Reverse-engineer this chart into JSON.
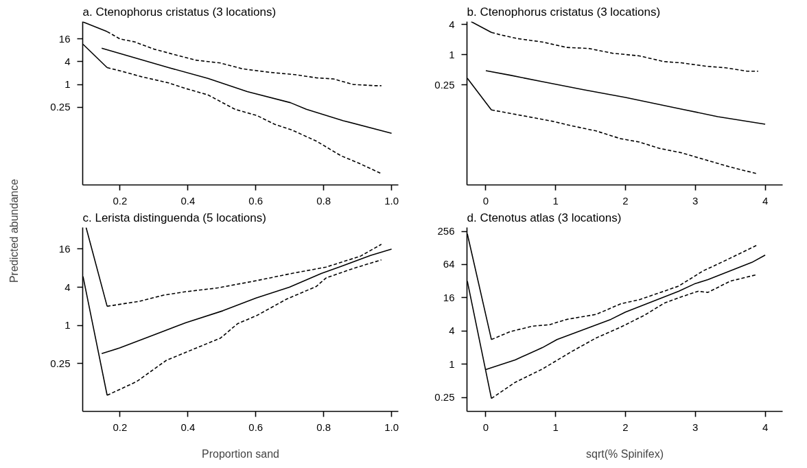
{
  "chart_data": [
    {
      "type": "line",
      "title": "a. Ctenophorus cristatus (3 locations)",
      "ylabel": "Predicted abundance",
      "log": true,
      "grid": false,
      "xlim": [
        0.09,
        1.02
      ],
      "ylim": [
        0.0022,
        46
      ],
      "xticks": [
        0.2,
        0.4,
        0.6,
        0.8,
        {
          "value": 1.0,
          "label": "1.0"
        }
      ],
      "yticks": [
        0.25,
        1,
        4,
        16
      ],
      "series": [
        {
          "color": "#000000",
          "line_style": "solid",
          "x": [
            0.146,
            0.343,
            0.459,
            0.575,
            0.702,
            0.749,
            0.858,
            1.0
          ],
          "values": [
            9.1,
            2.8,
            1.45,
            0.65,
            0.33,
            0.22,
            0.11,
            0.051
          ]
        },
        {
          "color": "#000000",
          "line_style": "dashed",
          "x": [
            0.162,
            0.2,
            0.243,
            0.3,
            0.343,
            0.423,
            0.496,
            0.56,
            0.64,
            0.72,
            0.778,
            0.829,
            0.887,
            0.952,
            0.97
          ],
          "values": [
            25,
            16,
            13.4,
            8.6,
            6.8,
            4.4,
            3.7,
            2.6,
            2.1,
            1.8,
            1.5,
            1.4,
            1.0,
            0.93,
            0.93
          ]
        },
        {
          "color": "#000000",
          "line_style": "dashed",
          "x": [
            0.162,
            0.2,
            0.264,
            0.343,
            0.394,
            0.459,
            0.539,
            0.604,
            0.655,
            0.706,
            0.778,
            0.851,
            0.902,
            0.967
          ],
          "values": [
            2.8,
            2.3,
            1.6,
            1.1,
            0.78,
            0.53,
            0.22,
            0.15,
            0.089,
            0.0625,
            0.032,
            0.013,
            0.0084,
            0.0045
          ]
        },
        {
          "color": "#000000",
          "line_style": "solid",
          "x": [
            0.091,
            0.162
          ],
          "values": [
            45,
            25
          ]
        },
        {
          "color": "#000000",
          "line_style": "solid",
          "x": [
            0.091,
            0.162
          ],
          "values": [
            11.6,
            2.8
          ]
        }
      ]
    },
    {
      "type": "line",
      "title": "b. Ctenophorus cristatus (3 locations)",
      "log": true,
      "grid": false,
      "xlim": [
        -0.27,
        4.25
      ],
      "ylim": [
        0.0025,
        4.6
      ],
      "xticks": [
        0,
        1,
        2,
        3,
        4
      ],
      "yticks": [
        0.25,
        1,
        4
      ],
      "series": [
        {
          "color": "#000000",
          "line_style": "solid",
          "x": [
            0,
            0.35,
            0.81,
            1.4,
            2.0,
            2.8,
            3.32,
            4.0
          ],
          "values": [
            0.48,
            0.39,
            0.29,
            0.2,
            0.14,
            0.082,
            0.058,
            0.041
          ]
        },
        {
          "color": "#000000",
          "line_style": "dashed",
          "x": [
            0.08,
            0.21,
            0.46,
            0.81,
            1.16,
            1.47,
            1.82,
            2.2,
            2.55,
            2.8,
            3.15,
            3.43,
            3.74,
            3.9
          ],
          "values": [
            2.8,
            2.5,
            2.1,
            1.8,
            1.4,
            1.34,
            1.07,
            0.95,
            0.73,
            0.69,
            0.59,
            0.55,
            0.47,
            0.47
          ]
        },
        {
          "color": "#000000",
          "line_style": "dashed",
          "x": [
            0.08,
            0.6,
            0.95,
            1.23,
            1.58,
            1.93,
            2.2,
            2.48,
            2.8,
            3.15,
            3.5,
            3.88
          ],
          "values": [
            0.079,
            0.058,
            0.047,
            0.038,
            0.03,
            0.021,
            0.018,
            0.0135,
            0.011,
            0.0079,
            0.0057,
            0.0042
          ]
        },
        {
          "color": "#000000",
          "line_style": "solid",
          "x": [
            -0.21,
            0.08
          ],
          "values": [
            4.6,
            2.8
          ]
        },
        {
          "color": "#000000",
          "line_style": "solid",
          "x": [
            -0.265,
            0.08
          ],
          "values": [
            0.34,
            0.079
          ]
        }
      ]
    },
    {
      "type": "line",
      "title": "c. Lerista distinguenda (5 locations)",
      "xlabel": "Proportion sand",
      "log": true,
      "grid": false,
      "xlim": [
        0.09,
        1.02
      ],
      "ylim": [
        0.044,
        35
      ],
      "xticks": [
        0.2,
        0.4,
        0.6,
        0.8,
        {
          "value": 1.0,
          "label": "1.0"
        }
      ],
      "yticks": [
        0.25,
        1,
        4,
        16
      ],
      "series": [
        {
          "color": "#000000",
          "line_style": "solid",
          "x": [
            0.146,
            0.199,
            0.3,
            0.394,
            0.503,
            0.601,
            0.699,
            0.793,
            0.851,
            0.938,
            1.0
          ],
          "values": [
            0.36,
            0.44,
            0.71,
            1.1,
            1.7,
            2.7,
            4.0,
            6.6,
            8.5,
            12.7,
            16
          ]
        },
        {
          "color": "#000000",
          "line_style": "dashed",
          "x": [
            0.162,
            0.257,
            0.329,
            0.394,
            0.488,
            0.604,
            0.706,
            0.807,
            0.909,
            0.97
          ],
          "values": [
            2.0,
            2.4,
            3.0,
            3.4,
            3.9,
            5.1,
            6.6,
            8.3,
            12.4,
            19
          ]
        },
        {
          "color": "#000000",
          "line_style": "dashed",
          "x": [
            0.162,
            0.249,
            0.336,
            0.401,
            0.496,
            0.546,
            0.604,
            0.691,
            0.778,
            0.807,
            0.887,
            0.97
          ],
          "values": [
            0.079,
            0.13,
            0.28,
            0.39,
            0.63,
            1.06,
            1.44,
            2.6,
            4.1,
            5.6,
            7.9,
            10.8
          ]
        },
        {
          "color": "#000000",
          "line_style": "solid",
          "x": [
            0.1,
            0.162
          ],
          "values": [
            35,
            2.0
          ]
        },
        {
          "color": "#000000",
          "line_style": "solid",
          "x": [
            0.091,
            0.162
          ],
          "values": [
            5.9,
            0.079
          ]
        }
      ]
    },
    {
      "type": "line",
      "title": "d. Ctenotus atlas (3 locations)",
      "xlabel": "sqrt(% Spinifex)",
      "log": true,
      "grid": false,
      "xlim": [
        -0.27,
        4.25
      ],
      "ylim": [
        0.14,
        300
      ],
      "xticks": [
        0,
        1,
        2,
        3,
        4
      ],
      "yticks": [
        0.25,
        1,
        4,
        16,
        64,
        256
      ],
      "series": [
        {
          "color": "#000000",
          "line_style": "solid",
          "x": [
            0,
            0.42,
            0.81,
            1.02,
            1.79,
            2.0,
            2.76,
            3.0,
            3.18,
            3.81,
            4.0
          ],
          "values": [
            0.8,
            1.2,
            2.0,
            2.8,
            6.5,
            8.8,
            21,
            29,
            34,
            70,
            95
          ]
        },
        {
          "color": "#000000",
          "line_style": "dashed",
          "x": [
            0.08,
            0.35,
            0.67,
            0.91,
            1.16,
            1.58,
            1.93,
            2.2,
            2.55,
            2.76,
            3.11,
            3.32,
            3.67,
            3.88
          ],
          "values": [
            2.8,
            3.9,
            4.9,
            5.2,
            6.5,
            8,
            12.4,
            14.8,
            21,
            26,
            49,
            65,
            106,
            143
          ]
        },
        {
          "color": "#000000",
          "line_style": "dashed",
          "x": [
            0.08,
            0.42,
            0.81,
            1.23,
            1.58,
            1.93,
            2.27,
            2.55,
            2.76,
            3.04,
            3.18,
            3.5,
            3.88
          ],
          "values": [
            0.24,
            0.47,
            0.82,
            1.7,
            3.0,
            4.7,
            7.7,
            12.7,
            16,
            21,
            20,
            32,
            42
          ]
        },
        {
          "color": "#000000",
          "line_style": "solid",
          "x": [
            -0.265,
            0.08
          ],
          "values": [
            230,
            2.8
          ]
        },
        {
          "color": "#000000",
          "line_style": "solid",
          "x": [
            -0.265,
            0.08
          ],
          "values": [
            32,
            0.24
          ]
        }
      ]
    }
  ]
}
